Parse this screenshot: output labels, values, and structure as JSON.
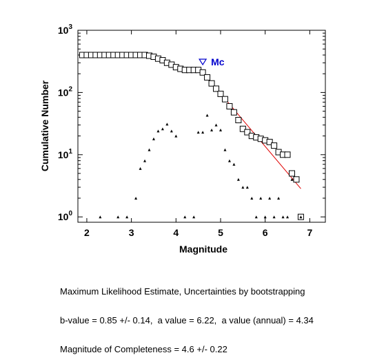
{
  "chart_data": {
    "type": "scatter",
    "xlabel": "Magnitude",
    "ylabel": "Cumulative Number",
    "xlim": [
      1.8,
      7.35
    ],
    "ylim": [
      0.82,
      1000
    ],
    "yscale": "log",
    "x_ticks": [
      2,
      3,
      4,
      5,
      6,
      7
    ],
    "y_ticks": [
      {
        "base": "10",
        "exp": "0",
        "value": 1
      },
      {
        "base": "10",
        "exp": "1",
        "value": 10
      },
      {
        "base": "10",
        "exp": "2",
        "value": 100
      },
      {
        "base": "10",
        "exp": "3",
        "value": 1000
      }
    ],
    "series": [
      {
        "marker": "open-square",
        "color": "#000000",
        "x": [
          1.9,
          2.0,
          2.1,
          2.2,
          2.3,
          2.4,
          2.5,
          2.6,
          2.7,
          2.8,
          2.9,
          3.0,
          3.1,
          3.2,
          3.3,
          3.4,
          3.5,
          3.6,
          3.7,
          3.8,
          3.9,
          4.0,
          4.1,
          4.2,
          4.3,
          4.4,
          4.5,
          4.6,
          4.7,
          4.8,
          4.9,
          5.0,
          5.1,
          5.2,
          5.3,
          5.4,
          5.5,
          5.6,
          5.7,
          5.8,
          5.9,
          6.0,
          6.1,
          6.2,
          6.3,
          6.4,
          6.5,
          6.6,
          6.7,
          6.8
        ],
        "y": [
          400,
          400,
          400,
          400,
          400,
          400,
          400,
          400,
          400,
          400,
          400,
          400,
          400,
          400,
          400,
          390,
          375,
          350,
          330,
          300,
          280,
          255,
          240,
          230,
          230,
          230,
          230,
          210,
          175,
          140,
          115,
          95,
          78,
          60,
          48,
          36,
          26,
          23,
          20,
          19,
          18,
          17,
          16,
          14,
          11,
          10,
          10,
          5,
          4,
          1
        ]
      },
      {
        "marker": "triangle",
        "color": "#000000",
        "x": [
          2.3,
          2.7,
          2.9,
          3.1,
          3.2,
          3.3,
          3.4,
          3.5,
          3.6,
          3.7,
          3.8,
          3.9,
          4.0,
          4.2,
          4.4,
          4.5,
          4.6,
          4.7,
          4.8,
          4.9,
          5.0,
          5.1,
          5.2,
          5.3,
          5.4,
          5.5,
          5.6,
          5.7,
          5.8,
          5.9,
          6.0,
          6.1,
          6.2,
          6.3,
          6.4,
          6.5,
          6.6,
          6.8
        ],
        "y": [
          1,
          1,
          1,
          2,
          6,
          8,
          12,
          18,
          24,
          26,
          31,
          24,
          20,
          1,
          1,
          23,
          23,
          43,
          25,
          30,
          25,
          12,
          8,
          7,
          4,
          3,
          3,
          2,
          1,
          2,
          1,
          2,
          1,
          2,
          1,
          1,
          4,
          1
        ]
      }
    ],
    "fit_line": {
      "color": "#e00000",
      "x": [
        4.6,
        6.8
      ],
      "y": [
        210,
        2.84
      ]
    },
    "mc_marker": {
      "x": 4.6,
      "y": 310,
      "label": "Mc",
      "color": "#0000cc"
    }
  },
  "caption": {
    "line1": "Maximum Likelihood Estimate, Uncertainties by bootstrapping",
    "line2": "b-value = 0.85 +/- 0.14,  a value = 6.22,  a value (annual) = 4.34",
    "line3": "Magnitude of Completeness = 4.6 +/- 0.22"
  }
}
